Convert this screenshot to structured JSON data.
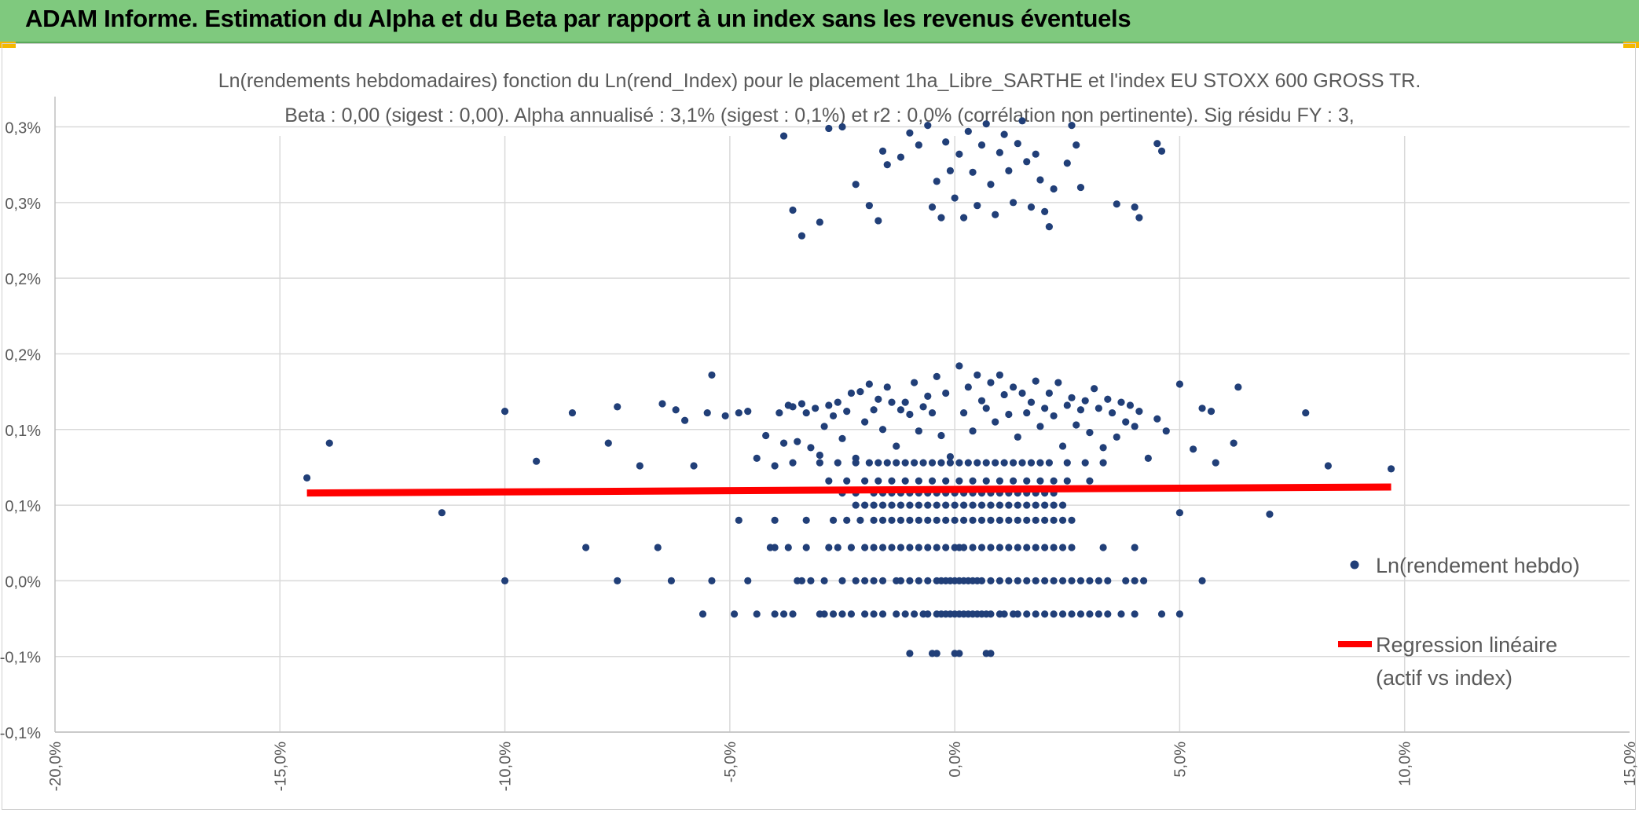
{
  "banner": {
    "title": "ADAM Informe. Estimation du Alpha et du Beta par rapport à un index sans les revenus éventuels"
  },
  "colors": {
    "banner_bg": "#7fc97e",
    "accent_corner": "#f5b800",
    "points": "#213f78",
    "regression": "#ff0000",
    "grid": "#d9d9d9",
    "text": "#595959"
  },
  "chart_data": {
    "type": "scatter",
    "title": "Ln(rendements hebdomadaires) fonction du Ln(rend_Index) pour le placement 1ha_Libre_SARTHE et l'index EU STOXX 600 GROSS TR.",
    "subtitle": "Beta : 0,00 (sigest : 0,00). Alpha annualisé : 3,1% (sigest : 0,1%) et r2 : 0,0% (corrélation non pertinente). Sig résidu FY : 3,",
    "xlim": [
      -0.2,
      0.15
    ],
    "ylim": [
      -0.001,
      0.0032
    ],
    "x_ticks": [
      -0.2,
      -0.15,
      -0.1,
      -0.05,
      0.0,
      0.05,
      0.1,
      0.15
    ],
    "x_tick_labels": [
      "-20,0%",
      "-15,0%",
      "-10,0%",
      "-5,0%",
      "0,0%",
      "5,0%",
      "10,0%",
      "15,0%"
    ],
    "y_ticks": [
      -0.001,
      -0.0005,
      0.0,
      0.0005,
      0.001,
      0.0015,
      0.002,
      0.0025,
      0.003
    ],
    "y_tick_labels": [
      "-0,1%",
      "-0,1%",
      "0,0%",
      "0,1%",
      "0,1%",
      "0,2%",
      "0,2%",
      "0,3%",
      "0,3%"
    ],
    "grid": true,
    "legend_placement": "right",
    "series": [
      {
        "name": "Ln(rendement hebdo)",
        "kind": "scatter",
        "color": "#213f78",
        "points": [
          [
            -0.144,
            0.00068
          ],
          [
            -0.139,
            0.00091
          ],
          [
            -0.114,
            0.00045
          ],
          [
            -0.1,
            0.00112
          ],
          [
            -0.093,
            0.00079
          ],
          [
            -0.085,
            0.00111
          ],
          [
            -0.075,
            0.00115
          ],
          [
            -0.077,
            0.00091
          ],
          [
            -0.07,
            0.00076
          ],
          [
            -0.065,
            0.00117
          ],
          [
            -0.062,
            0.00113
          ],
          [
            -0.06,
            0.00106
          ],
          [
            -0.058,
            0.00076
          ],
          [
            -0.055,
            0.00111
          ],
          [
            -0.054,
            0.00136
          ],
          [
            -0.051,
            0.00109
          ],
          [
            -0.048,
            0.00111
          ],
          [
            -0.046,
            0.00112
          ],
          [
            -0.044,
            0.00081
          ],
          [
            -0.042,
            0.00096
          ],
          [
            -0.04,
            0.00076
          ],
          [
            -0.039,
            0.00111
          ],
          [
            -0.038,
            0.00091
          ],
          [
            -0.037,
            0.00116
          ],
          [
            -0.036,
            0.00115
          ],
          [
            -0.035,
            0.00092
          ],
          [
            -0.034,
            0.00117
          ],
          [
            -0.033,
            0.00111
          ],
          [
            -0.032,
            0.00088
          ],
          [
            -0.031,
            0.00114
          ],
          [
            -0.03,
            0.00083
          ],
          [
            -0.029,
            0.00102
          ],
          [
            -0.028,
            0.00116
          ],
          [
            -0.027,
            0.00109
          ],
          [
            -0.026,
            0.00118
          ],
          [
            -0.025,
            0.00094
          ],
          [
            -0.024,
            0.00112
          ],
          [
            -0.023,
            0.00124
          ],
          [
            -0.022,
            0.00081
          ],
          [
            -0.021,
            0.00125
          ],
          [
            -0.02,
            0.00105
          ],
          [
            -0.019,
            0.0013
          ],
          [
            -0.018,
            0.00113
          ],
          [
            -0.017,
            0.0012
          ],
          [
            -0.016,
            0.001
          ],
          [
            -0.015,
            0.00128
          ],
          [
            -0.014,
            0.00118
          ],
          [
            -0.013,
            0.00089
          ],
          [
            -0.012,
            0.00113
          ],
          [
            -0.011,
            0.00118
          ],
          [
            -0.01,
            0.0011
          ],
          [
            -0.009,
            0.00131
          ],
          [
            -0.008,
            0.00099
          ],
          [
            -0.007,
            0.00115
          ],
          [
            -0.006,
            0.00122
          ],
          [
            -0.005,
            0.00111
          ],
          [
            -0.004,
            0.00135
          ],
          [
            -0.003,
            0.00096
          ],
          [
            -0.002,
            0.00124
          ],
          [
            -0.001,
            0.00082
          ],
          [
            0.001,
            0.00142
          ],
          [
            0.002,
            0.00111
          ],
          [
            0.003,
            0.00128
          ],
          [
            0.004,
            0.00099
          ],
          [
            0.005,
            0.00136
          ],
          [
            0.006,
            0.00119
          ],
          [
            0.007,
            0.00114
          ],
          [
            0.008,
            0.00131
          ],
          [
            0.009,
            0.00105
          ],
          [
            0.01,
            0.00136
          ],
          [
            0.011,
            0.00123
          ],
          [
            0.012,
            0.0011
          ],
          [
            0.013,
            0.00128
          ],
          [
            0.014,
            0.00095
          ],
          [
            0.015,
            0.00124
          ],
          [
            0.016,
            0.00111
          ],
          [
            0.017,
            0.00118
          ],
          [
            0.018,
            0.00132
          ],
          [
            0.019,
            0.00102
          ],
          [
            0.02,
            0.00114
          ],
          [
            0.021,
            0.00124
          ],
          [
            0.022,
            0.00109
          ],
          [
            0.023,
            0.00131
          ],
          [
            0.024,
            0.00089
          ],
          [
            0.025,
            0.00116
          ],
          [
            0.026,
            0.00121
          ],
          [
            0.027,
            0.00103
          ],
          [
            0.028,
            0.00113
          ],
          [
            0.029,
            0.00119
          ],
          [
            0.03,
            0.00098
          ],
          [
            0.031,
            0.00127
          ],
          [
            0.032,
            0.00114
          ],
          [
            0.033,
            0.00088
          ],
          [
            0.034,
            0.0012
          ],
          [
            0.035,
            0.00111
          ],
          [
            0.036,
            0.00095
          ],
          [
            0.037,
            0.00118
          ],
          [
            0.038,
            0.00105
          ],
          [
            0.039,
            0.00116
          ],
          [
            0.04,
            0.00102
          ],
          [
            0.041,
            0.00112
          ],
          [
            0.043,
            0.00081
          ],
          [
            0.045,
            0.00107
          ],
          [
            0.047,
            0.00099
          ],
          [
            0.05,
            0.00045
          ],
          [
            0.05,
            0.0013
          ],
          [
            0.053,
            0.00087
          ],
          [
            0.055,
            0.00114
          ],
          [
            0.057,
            0.00112
          ],
          [
            0.058,
            0.00078
          ],
          [
            0.062,
            0.00091
          ],
          [
            0.063,
            0.00128
          ],
          [
            0.07,
            0.00044
          ],
          [
            0.078,
            0.00111
          ],
          [
            0.083,
            0.00076
          ],
          [
            0.097,
            0.00074
          ],
          [
            -0.038,
            0.00294
          ],
          [
            -0.036,
            0.00245
          ],
          [
            -0.034,
            0.00228
          ],
          [
            -0.03,
            0.00237
          ],
          [
            -0.028,
            0.00299
          ],
          [
            -0.025,
            0.003
          ],
          [
            -0.022,
            0.00262
          ],
          [
            -0.019,
            0.00248
          ],
          [
            -0.017,
            0.00238
          ],
          [
            -0.016,
            0.00284
          ],
          [
            -0.015,
            0.00275
          ],
          [
            -0.012,
            0.0028
          ],
          [
            -0.01,
            0.00296
          ],
          [
            -0.008,
            0.00288
          ],
          [
            -0.006,
            0.00301
          ],
          [
            -0.005,
            0.00247
          ],
          [
            -0.004,
            0.00264
          ],
          [
            -0.003,
            0.0024
          ],
          [
            -0.002,
            0.0029
          ],
          [
            -0.001,
            0.00271
          ],
          [
            0.0,
            0.00253
          ],
          [
            0.001,
            0.00282
          ],
          [
            0.002,
            0.0024
          ],
          [
            0.003,
            0.00297
          ],
          [
            0.004,
            0.0027
          ],
          [
            0.005,
            0.00248
          ],
          [
            0.006,
            0.00288
          ],
          [
            0.007,
            0.00302
          ],
          [
            0.008,
            0.00262
          ],
          [
            0.009,
            0.00242
          ],
          [
            0.01,
            0.00283
          ],
          [
            0.011,
            0.00295
          ],
          [
            0.012,
            0.00271
          ],
          [
            0.013,
            0.0025
          ],
          [
            0.014,
            0.00289
          ],
          [
            0.015,
            0.00304
          ],
          [
            0.016,
            0.00277
          ],
          [
            0.017,
            0.00247
          ],
          [
            0.018,
            0.00282
          ],
          [
            0.019,
            0.00265
          ],
          [
            0.02,
            0.00244
          ],
          [
            0.021,
            0.00234
          ],
          [
            0.022,
            0.00259
          ],
          [
            0.025,
            0.00276
          ],
          [
            0.026,
            0.00301
          ],
          [
            0.027,
            0.00288
          ],
          [
            0.028,
            0.0026
          ],
          [
            0.036,
            0.00249
          ],
          [
            0.04,
            0.00247
          ],
          [
            0.041,
            0.0024
          ],
          [
            0.045,
            0.00289
          ],
          [
            0.046,
            0.00284
          ],
          [
            -0.01,
            -0.00048
          ],
          [
            -0.005,
            -0.00048
          ],
          [
            -0.004,
            -0.00048
          ],
          [
            0.0,
            -0.00048
          ],
          [
            0.001,
            -0.00048
          ],
          [
            0.007,
            -0.00048
          ],
          [
            0.008,
            -0.00048
          ]
        ]
      },
      {
        "name": "Regression linéaire (actif vs index)",
        "kind": "line",
        "color": "#ff0000",
        "x": [
          -0.144,
          0.097
        ],
        "y": [
          0.00058,
          0.00062
        ]
      }
    ],
    "legend": {
      "points_label": "Ln(rendement hebdo)",
      "line_label_1": "Regression linéaire",
      "line_label_2": "(actif vs index)"
    }
  }
}
